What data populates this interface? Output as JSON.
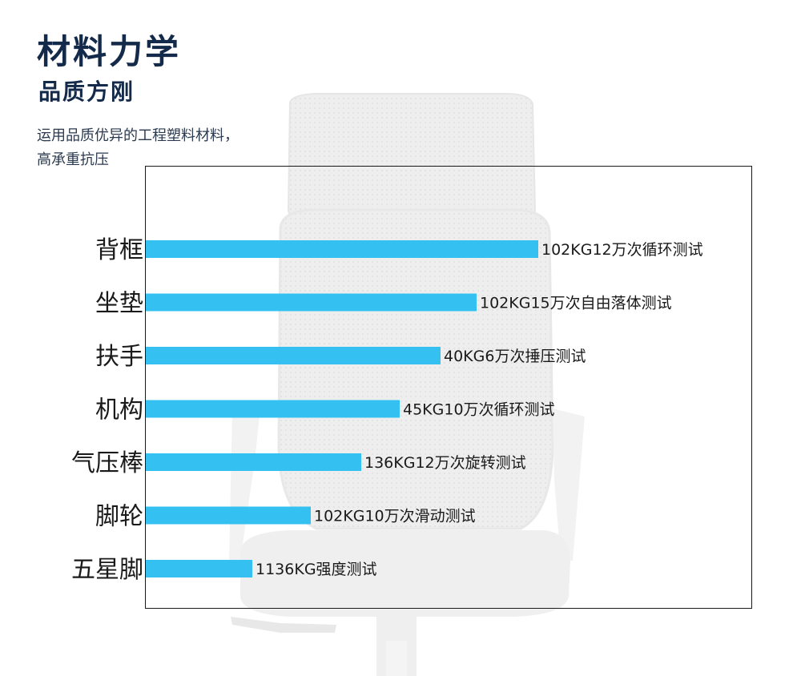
{
  "header": {
    "title": "材料力学",
    "subtitle": "品质方刚",
    "description_lines": [
      "运用品质优异的工程塑料材料，",
      "高承重抗压"
    ]
  },
  "colors": {
    "bar": "#35c0f2",
    "heading": "#142a4a",
    "text": "#1a1a1a",
    "frame": "#1a1a1a",
    "chair": "#ececec"
  },
  "chart_data": {
    "type": "bar",
    "orientation": "horizontal",
    "categories": [
      "背框",
      "坐垫",
      "扶手",
      "机构",
      "气压棒",
      "脚轮",
      "五星脚"
    ],
    "values": [
      490,
      413,
      368,
      317,
      269,
      206,
      133
    ],
    "data_labels": [
      "102KG12万次循环测试",
      "102KG15万次自由落体测试",
      "40KG6万次捶压测试",
      "45KG10万次循环测试",
      "136KG12万次旋转测试",
      "102KG10万次滑动测试",
      "1136KG强度测试"
    ],
    "xlim": [
      0,
      757
    ],
    "grid": false,
    "legend": "none"
  }
}
